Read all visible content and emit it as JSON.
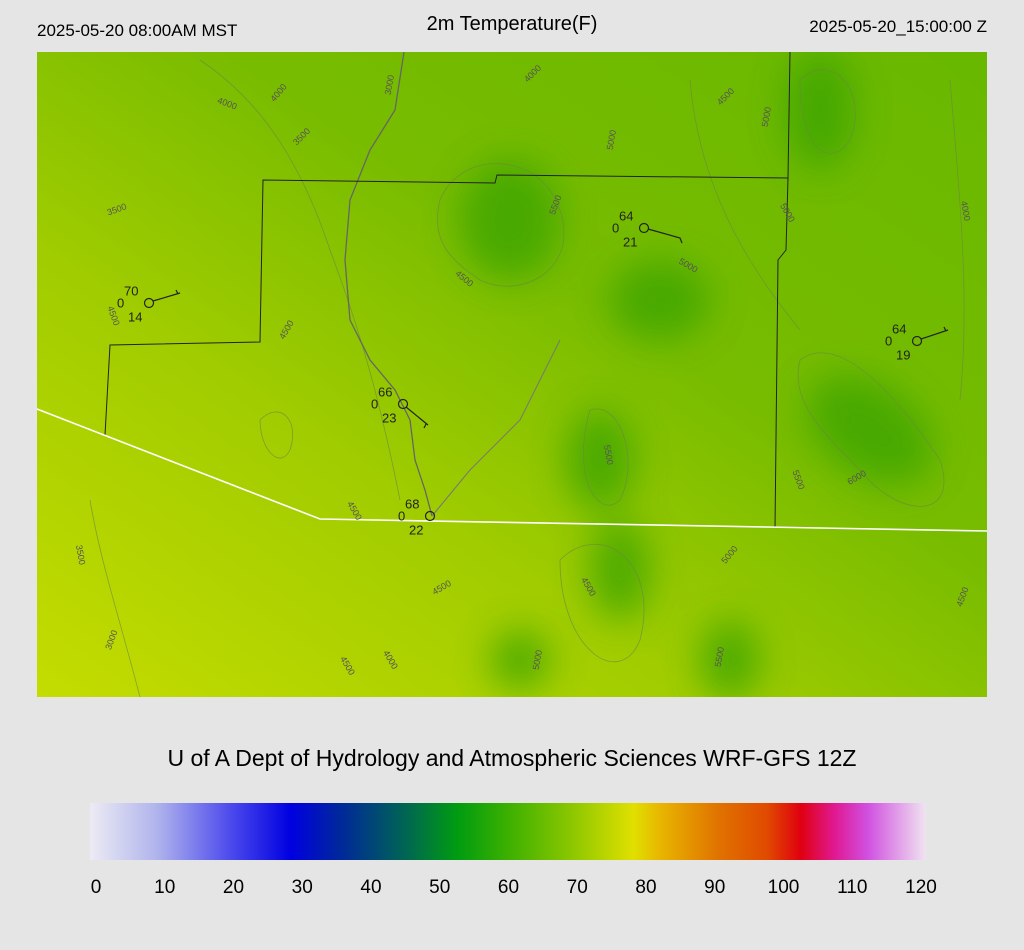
{
  "header": {
    "left": "2025-05-20 08:00AM MST",
    "title": "2m Temperature(F)",
    "right": "2025-05-20_15:00:00 Z"
  },
  "stations": [
    {
      "top": "70",
      "left": "0",
      "bottom": "14"
    },
    {
      "top": "64",
      "left": "0",
      "bottom": "21"
    },
    {
      "top": "64",
      "left": "0",
      "bottom": "19"
    },
    {
      "top": "66",
      "left": "0",
      "bottom": "23"
    },
    {
      "top": "68",
      "left": "0",
      "bottom": "22"
    }
  ],
  "contour_labels": [
    "4000",
    "4000",
    "4000",
    "3000",
    "3500",
    "3500",
    "4500",
    "5000",
    "5000",
    "5500",
    "5000",
    "4000",
    "5000",
    "4500",
    "4500",
    "4500",
    "5500",
    "5500",
    "6000",
    "3500",
    "4500",
    "4500",
    "4500",
    "5000",
    "4500",
    "3000",
    "4500",
    "4000",
    "5000",
    "5500"
  ],
  "credit": "U of A Dept of Hydrology and Atmospheric Sciences WRF-GFS 12Z",
  "colorbar": {
    "range": [
      0,
      120
    ],
    "ticks": [
      0,
      10,
      20,
      30,
      40,
      50,
      60,
      70,
      80,
      90,
      100,
      110,
      120
    ]
  }
}
